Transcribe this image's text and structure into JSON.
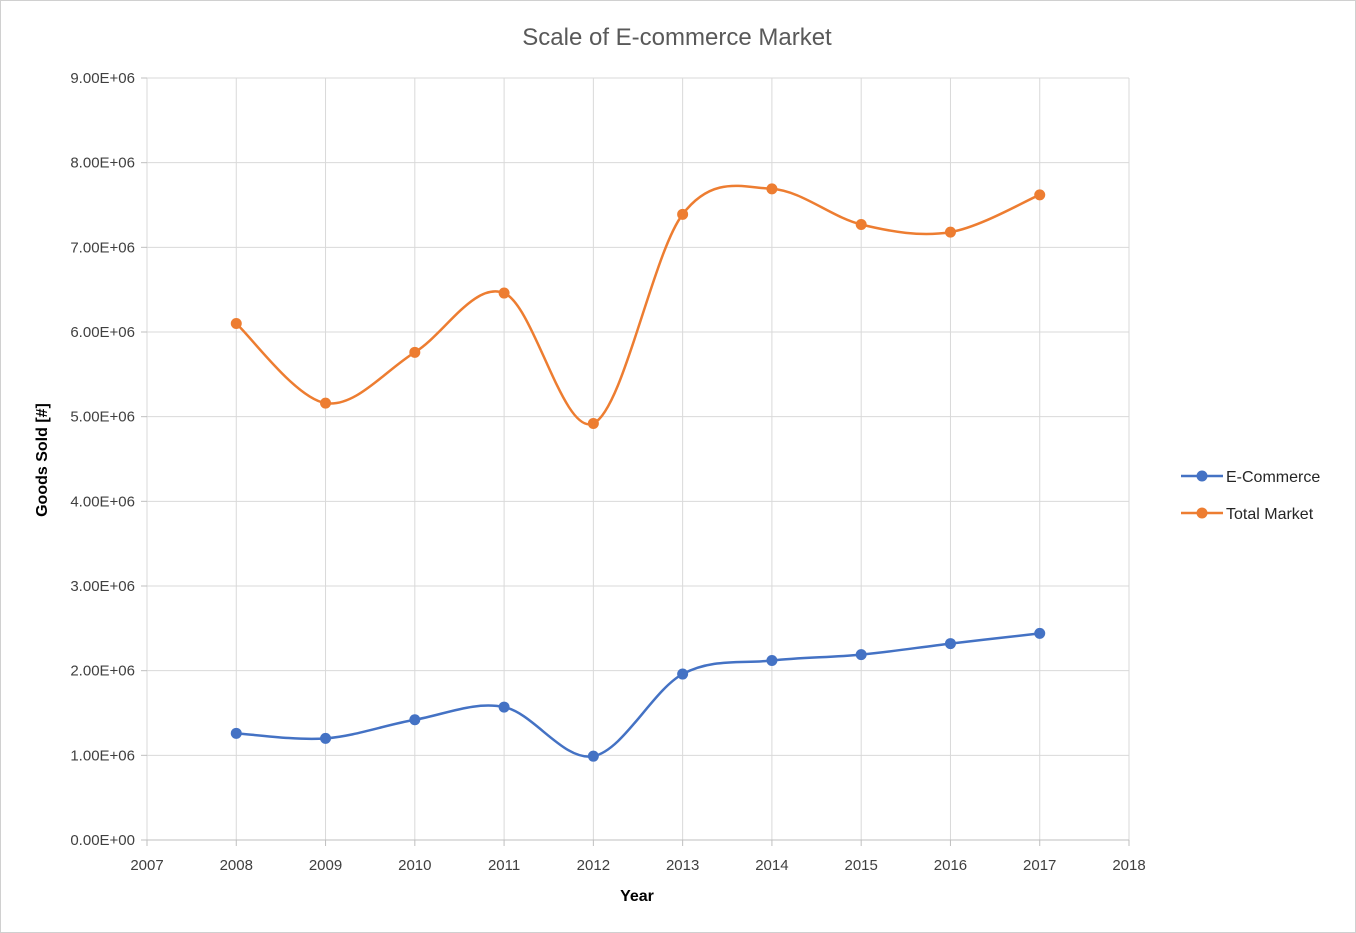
{
  "chart_data": {
    "type": "line",
    "title": "Scale of E-commerce Market",
    "xlabel": "Year",
    "ylabel": "Goods Sold [#]",
    "xlim": [
      2007,
      2018
    ],
    "ylim": [
      0,
      9000000
    ],
    "x_ticks": [
      "2007",
      "2008",
      "2009",
      "2010",
      "2011",
      "2012",
      "2013",
      "2014",
      "2015",
      "2016",
      "2017",
      "2018"
    ],
    "y_ticks": [
      "0.00E+00",
      "1.00E+06",
      "2.00E+06",
      "3.00E+06",
      "4.00E+06",
      "5.00E+06",
      "6.00E+06",
      "7.00E+06",
      "8.00E+06",
      "9.00E+06"
    ],
    "grid": true,
    "smoothed": true,
    "legend_position": "right",
    "x": [
      2008,
      2009,
      2010,
      2011,
      2012,
      2013,
      2014,
      2015,
      2016,
      2017
    ],
    "series": [
      {
        "name": "E-Commerce",
        "color": "#4472C4",
        "values": [
          1260000,
          1200000,
          1420000,
          1570000,
          990000,
          1960000,
          2120000,
          2190000,
          2320000,
          2440000
        ]
      },
      {
        "name": "Total Market",
        "color": "#ED7D31",
        "values": [
          6100000,
          5160000,
          5760000,
          6460000,
          4920000,
          7390000,
          7690000,
          7270000,
          7180000,
          7620000
        ]
      }
    ]
  }
}
